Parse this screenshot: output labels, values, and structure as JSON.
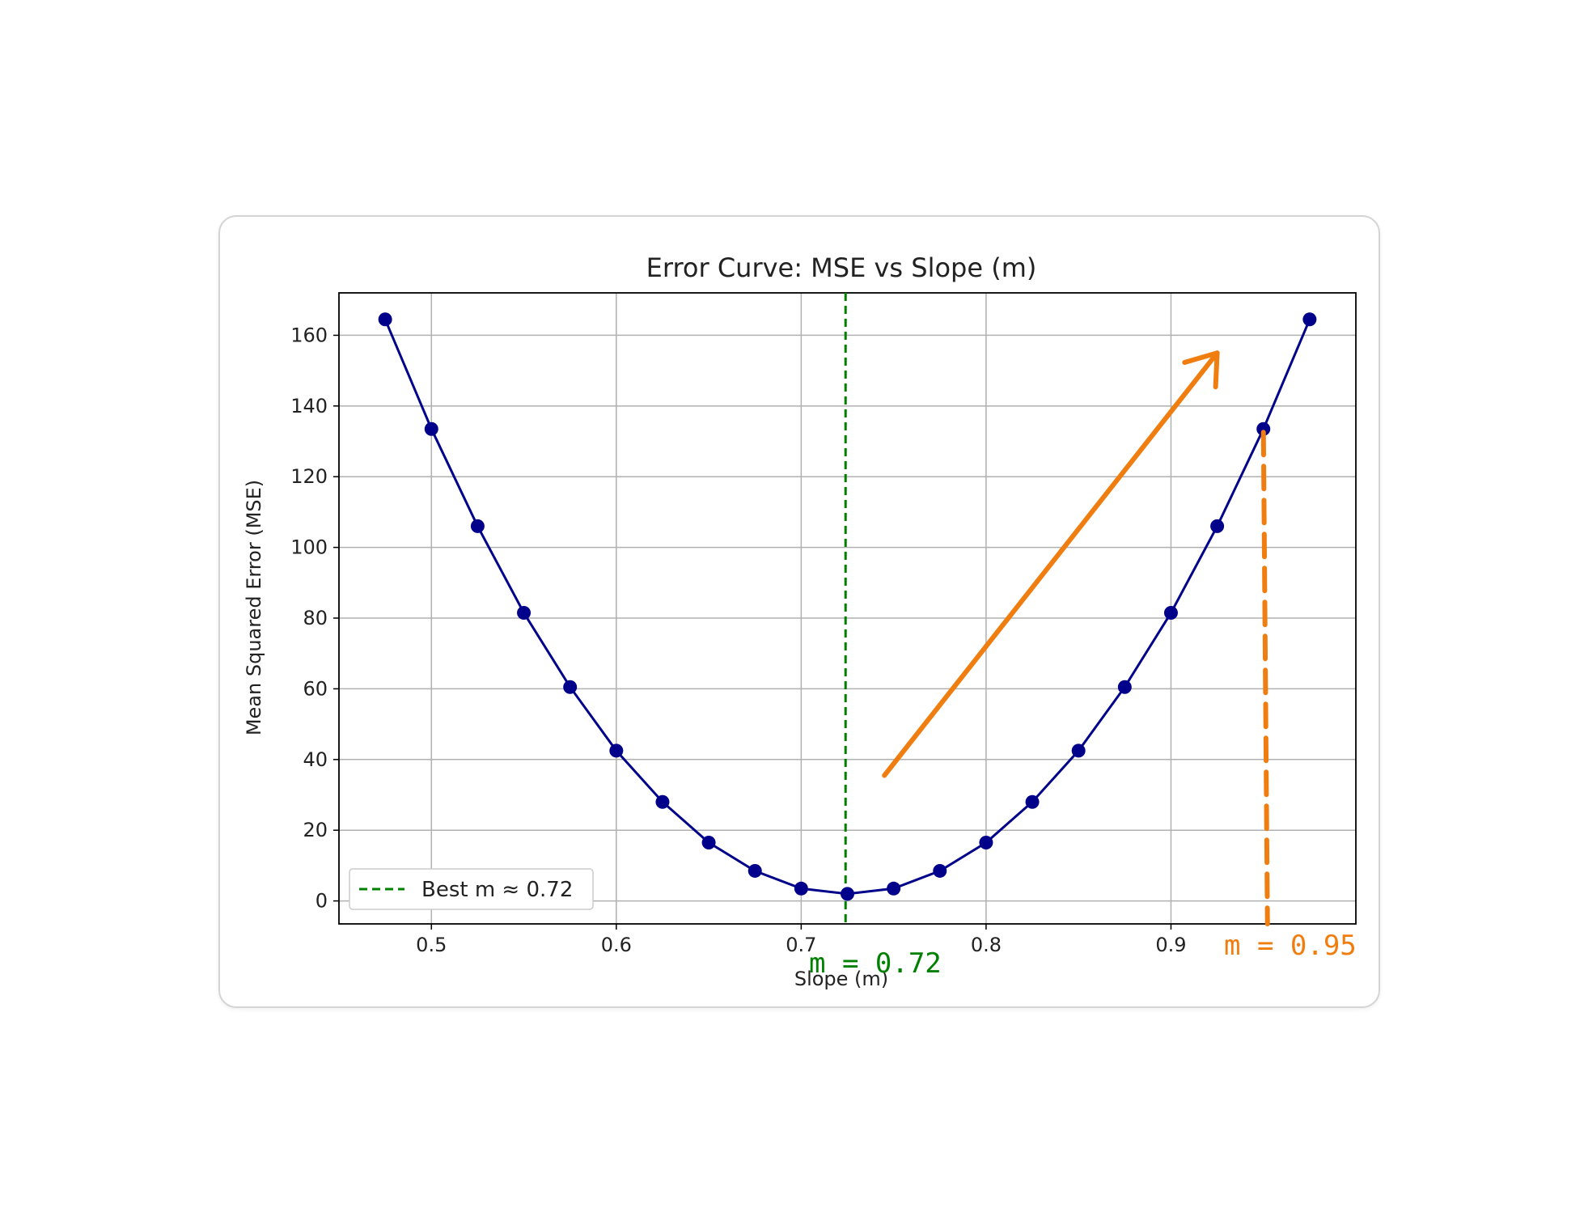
{
  "colors": {
    "curve": "#00008b",
    "marker": "#00008b",
    "best_line": "#008000",
    "annotation_orange": "#f07d0f",
    "grid": "#b0b0b0",
    "card_border": "#d4d4d4"
  },
  "chart_data": {
    "type": "line",
    "title": "Error Curve: MSE vs Slope (m)",
    "xlabel": "Slope (m)",
    "ylabel": "Mean Squared Error (MSE)",
    "xlim": [
      0.45,
      1.0
    ],
    "ylim": [
      -6.5,
      172.0
    ],
    "x_ticks": [
      0.5,
      0.6,
      0.7,
      0.8,
      0.9
    ],
    "x_tick_labels": [
      "0.5",
      "0.6",
      "0.7",
      "0.8",
      "0.9"
    ],
    "y_ticks": [
      0,
      20,
      40,
      60,
      80,
      100,
      120,
      140,
      160
    ],
    "y_tick_labels": [
      "0",
      "20",
      "40",
      "60",
      "80",
      "100",
      "120",
      "140",
      "160"
    ],
    "grid": true,
    "legend": {
      "placement": "lower-left",
      "entries": [
        "Best m ≈ 0.72"
      ]
    },
    "series": [
      {
        "marker": "circle",
        "x": [
          0.475,
          0.5,
          0.525,
          0.55,
          0.575,
          0.6,
          0.625,
          0.65,
          0.675,
          0.7,
          0.725,
          0.75,
          0.775,
          0.8,
          0.825,
          0.85,
          0.875,
          0.9,
          0.925,
          0.95,
          0.975
        ],
        "y": [
          164.5,
          133.5,
          106.0,
          81.5,
          60.5,
          42.5,
          28.0,
          16.5,
          8.5,
          3.5,
          2.0,
          3.5,
          8.5,
          16.5,
          28.0,
          42.5,
          60.5,
          81.5,
          106.0,
          133.5,
          164.5
        ]
      }
    ],
    "reference_lines": [
      {
        "orientation": "vertical",
        "x": 0.724,
        "style": "dashed",
        "legend": "Best m ≈ 0.72"
      }
    ]
  },
  "annotations": {
    "green_label": "m = 0.72",
    "orange_label": "m = 0.95",
    "orange_dashed_line": {
      "x": 0.95,
      "y_from": 133.5,
      "y_to": -6.5
    },
    "orange_arrow": {
      "from": [
        0.745,
        35.5
      ],
      "to": [
        0.925,
        155.0
      ]
    }
  }
}
